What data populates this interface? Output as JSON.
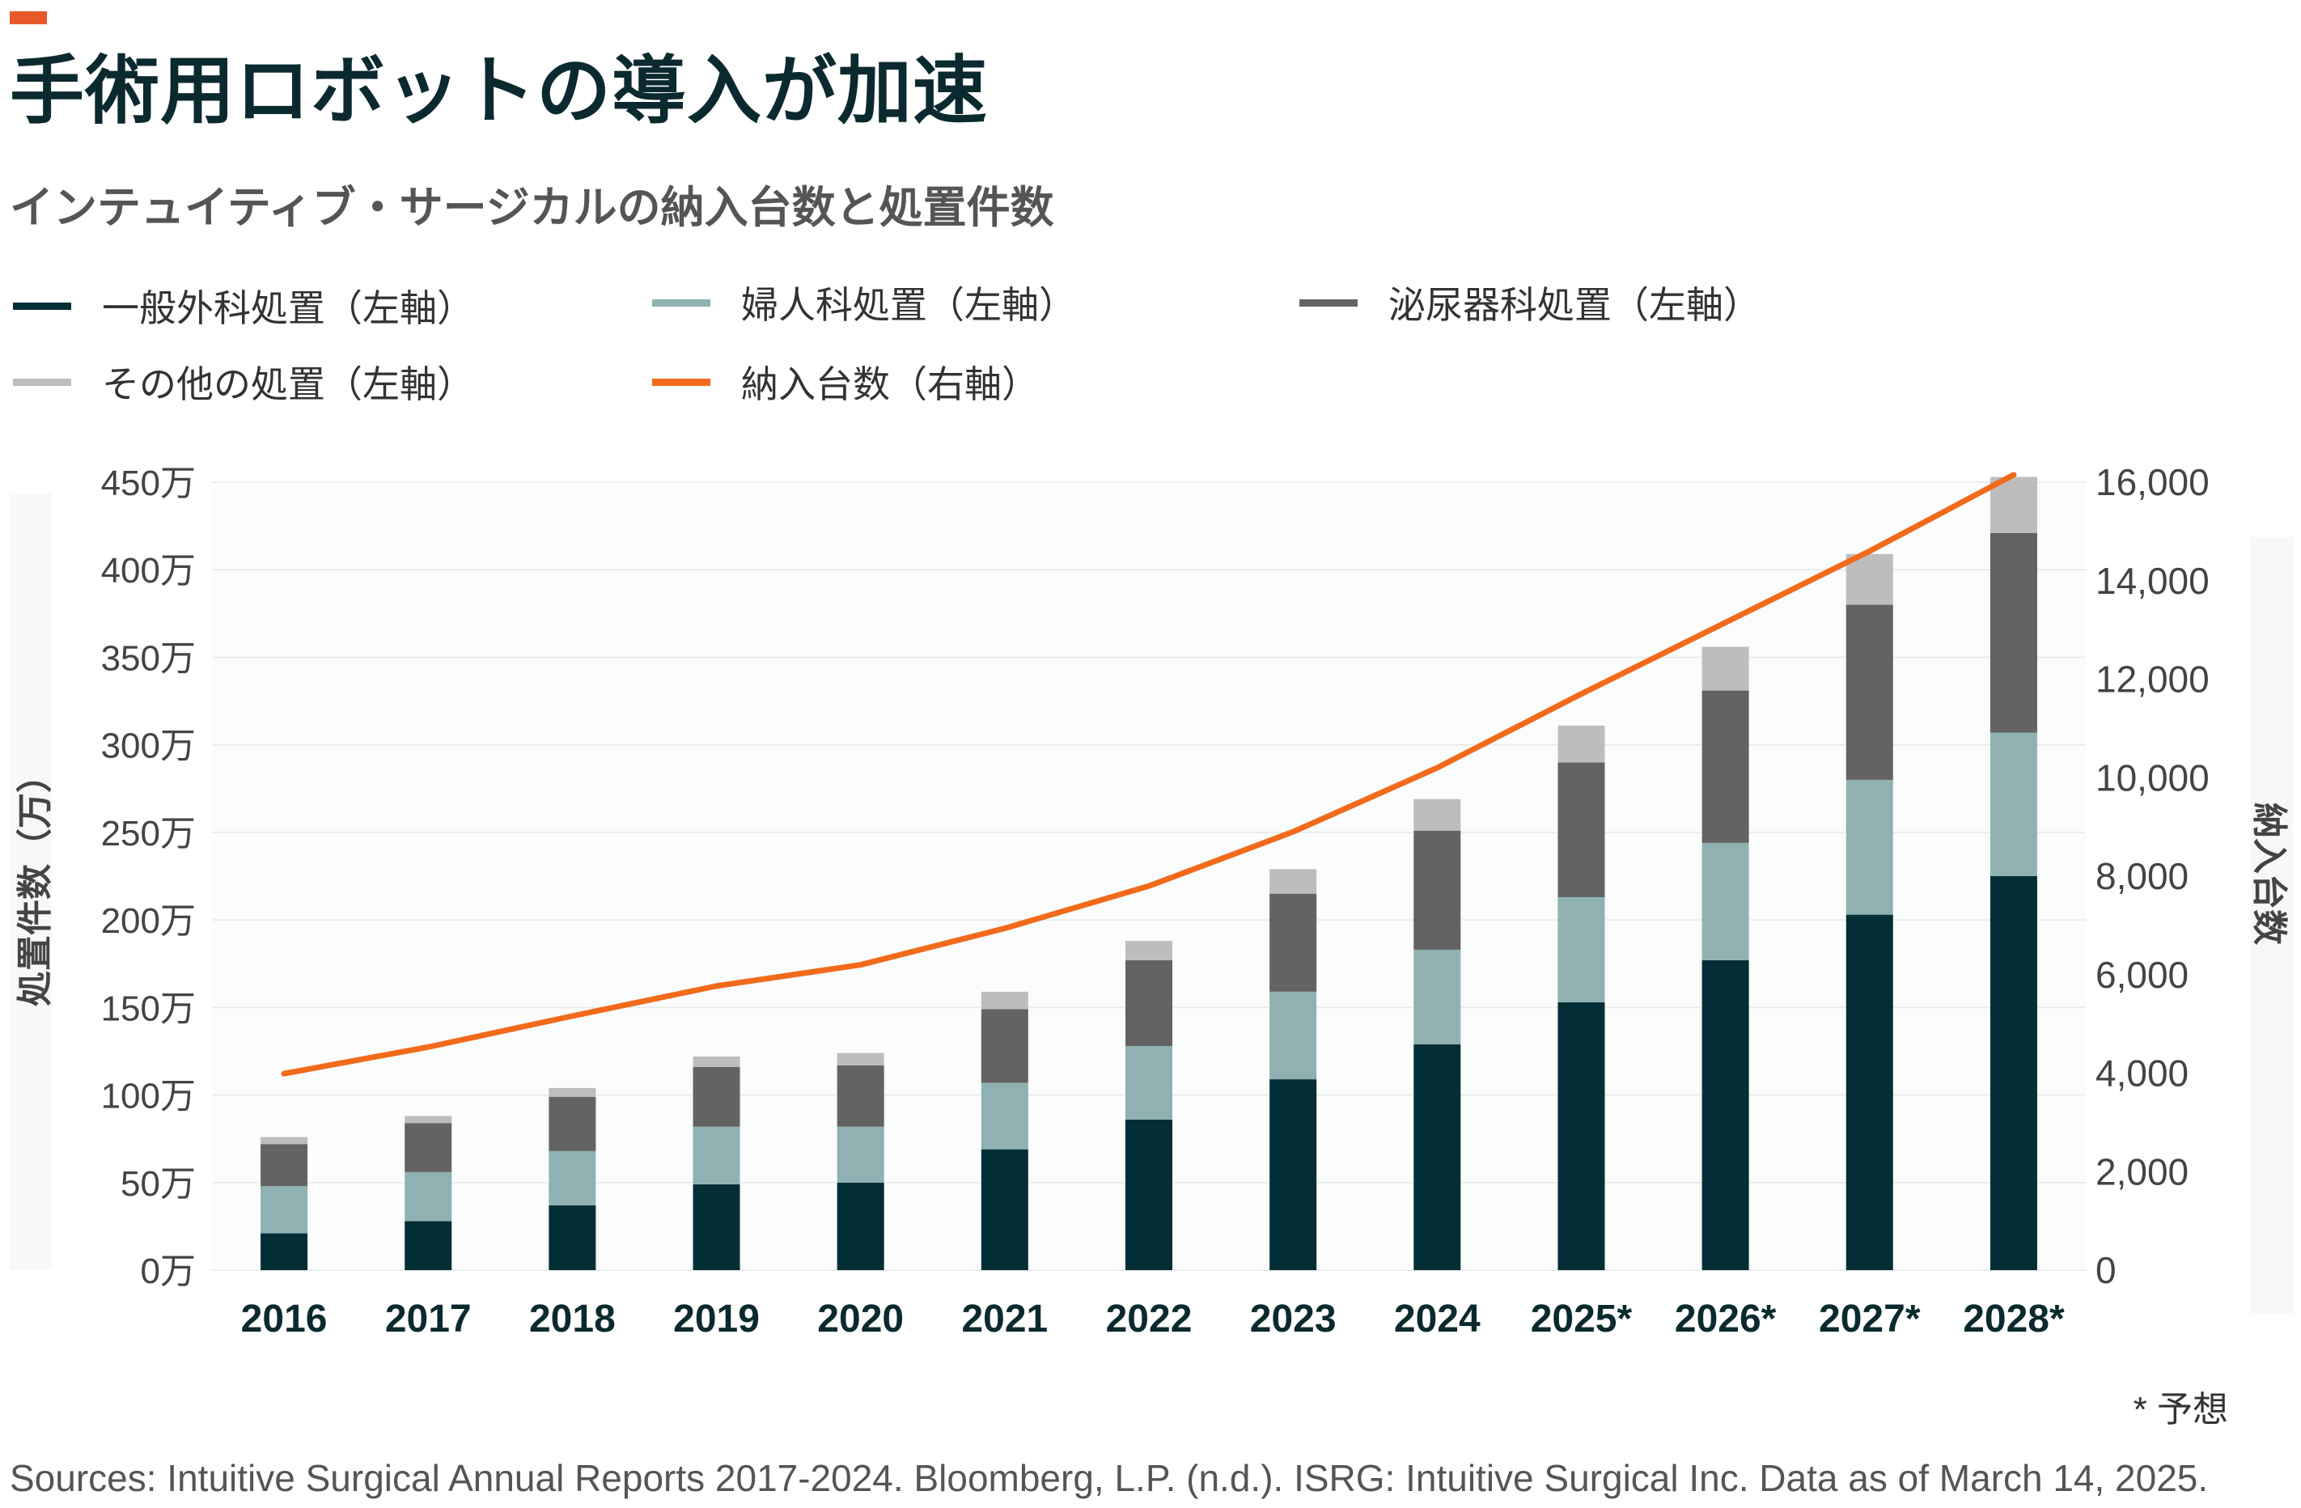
{
  "header": {
    "title": "手術用ロボットの導入が加速",
    "subtitle": "インテュイティブ・サージカルの納入台数と処置件数",
    "accent_color": "#e8592a"
  },
  "legend": [
    {
      "label": "一般外科処置（左軸）",
      "color": "#032e36"
    },
    {
      "label": "婦人科処置（左軸）",
      "color": "#8fb1b1"
    },
    {
      "label": "泌尿器科処置（左軸）",
      "color": "#636363"
    },
    {
      "label": "その他の処置（左軸）",
      "color": "#bdbdbd"
    },
    {
      "label": "納入台数（右軸）",
      "color": "#f26a1b"
    }
  ],
  "chart_data": {
    "type": "bar",
    "stacked": true,
    "categories": [
      "2016",
      "2017",
      "2018",
      "2019",
      "2020",
      "2021",
      "2022",
      "2023",
      "2024",
      "2025*",
      "2026*",
      "2027*",
      "2028*"
    ],
    "series": [
      {
        "name": "一般外科処置（左軸）",
        "axis": "left",
        "values": [
          21,
          28,
          37,
          49,
          50,
          69,
          86,
          109,
          129,
          153,
          177,
          203,
          225
        ]
      },
      {
        "name": "婦人科処置（左軸）",
        "axis": "left",
        "values": [
          27,
          28,
          31,
          33,
          32,
          38,
          42,
          50,
          54,
          60,
          67,
          77,
          82
        ]
      },
      {
        "name": "泌尿器科処置（左軸）",
        "axis": "left",
        "values": [
          24,
          28,
          31,
          34,
          35,
          42,
          49,
          56,
          68,
          77,
          87,
          100,
          114
        ]
      },
      {
        "name": "その他の処置（左軸）",
        "axis": "left",
        "values": [
          4,
          4,
          5,
          6,
          7,
          10,
          11,
          14,
          18,
          21,
          25,
          29,
          32
        ]
      }
    ],
    "line_series": {
      "name": "納入台数（右軸）",
      "axis": "right",
      "values": [
        3990,
        4530,
        5160,
        5770,
        6200,
        6940,
        7800,
        8900,
        10200,
        11700,
        13150,
        14600,
        16150
      ]
    },
    "left_axis": {
      "label": "処置件数（万）",
      "ylim": [
        0,
        450
      ],
      "ticks": [
        "0万",
        "50万",
        "100万",
        "150万",
        "200万",
        "250万",
        "300万",
        "350万",
        "400万",
        "450万"
      ]
    },
    "right_axis": {
      "label": "納入台数",
      "ylim": [
        0,
        16000
      ],
      "ticks": [
        "0",
        "2,000",
        "4,000",
        "6,000",
        "8,000",
        "10,000",
        "12,000",
        "14,000",
        "16,000"
      ]
    },
    "grid": true,
    "legend_position": "top"
  },
  "footer": {
    "note": "* 予想",
    "source": "Sources: Intuitive Surgical Annual Reports 2017-2024. Bloomberg, L.P. (n.d.). ISRG: Intuitive Surgical Inc. Data as of March 14, 2025."
  }
}
